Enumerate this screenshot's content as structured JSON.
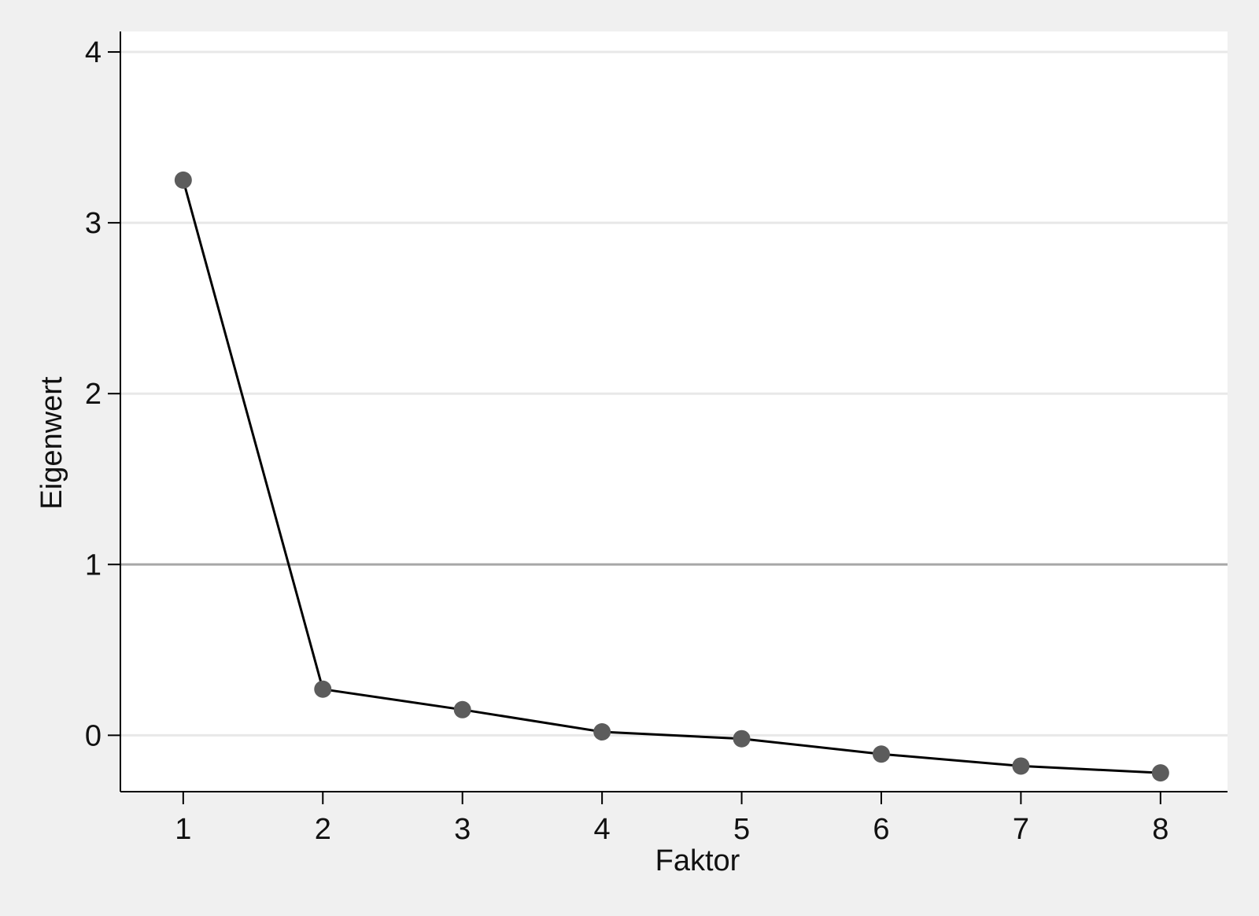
{
  "chart_data": {
    "type": "line",
    "title": "",
    "xlabel": "Faktor",
    "ylabel": "Eigenwert",
    "x": [
      1,
      2,
      3,
      4,
      5,
      6,
      7,
      8
    ],
    "series": [
      {
        "values": [
          3.25,
          0.27,
          0.15,
          0.02,
          -0.02,
          -0.11,
          -0.18,
          -0.22
        ]
      }
    ],
    "xlim": [
      0.55,
      8.48
    ],
    "ylim": [
      -0.33,
      4.12
    ],
    "xticks": [
      "1",
      "2",
      "3",
      "4",
      "5",
      "6",
      "7",
      "8"
    ],
    "yticks": [
      "0",
      "1",
      "2",
      "3",
      "4"
    ],
    "reference_line": 1,
    "grid": true,
    "legend": "none",
    "colors": {
      "background": "#f0f0f0",
      "plot_area": "#ffffff",
      "gridline": "#e8e8e8",
      "reference_line": "#a8a8a8",
      "series_line": "#000000",
      "marker": "#5c5c5c",
      "axis": "#000000"
    }
  }
}
